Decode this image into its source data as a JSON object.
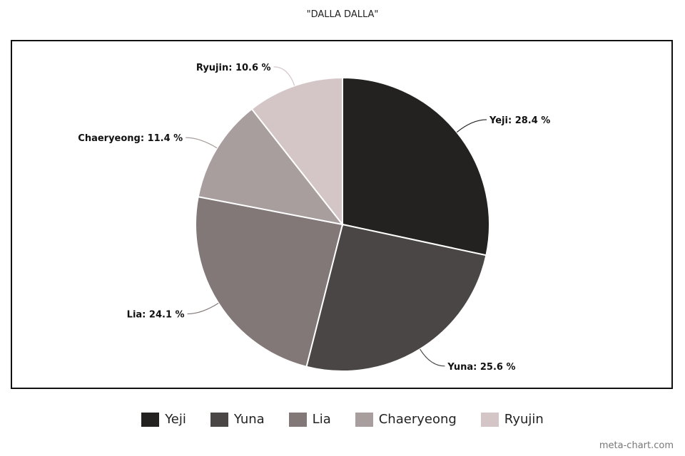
{
  "chart_data": {
    "type": "pie",
    "title": "\"DALLA DALLA\"",
    "categories": [
      "Yeji",
      "Yuna",
      "Lia",
      "Chaeryeong",
      "Ryujin"
    ],
    "values": [
      28.4,
      25.6,
      24.1,
      11.4,
      10.6
    ],
    "unit": "%",
    "colors": [
      "#232220",
      "#4a4645",
      "#817877",
      "#a89e9d",
      "#d4c6c6"
    ],
    "legend": "bottom",
    "start_angle": "top",
    "direction": "clockwise"
  },
  "credit": "meta-chart.com"
}
